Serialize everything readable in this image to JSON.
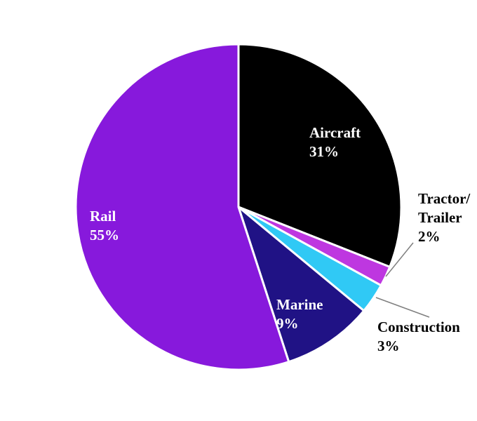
{
  "chart_data": {
    "type": "pie",
    "title": "",
    "direction": "clockwise",
    "start_angle_deg": 0,
    "background_color": "#ffffff",
    "slice_border_color": "#ffffff",
    "leader_line_color": "#7f7f7f",
    "slices": [
      {
        "id": "aircraft",
        "label": "Aircraft",
        "label_lines": [
          "Aircraft"
        ],
        "value": 31,
        "value_label": "31%",
        "color": "#000000",
        "label_color": "#ffffff",
        "label_placement": "inside"
      },
      {
        "id": "tractor-trailer",
        "label": "Tractor/Trailer",
        "label_lines": [
          "Tractor/",
          "Trailer"
        ],
        "value": 2,
        "value_label": "2%",
        "color": "#be37e0",
        "label_color": "#000000",
        "label_placement": "outside"
      },
      {
        "id": "construction",
        "label": "Construction",
        "label_lines": [
          "Construction"
        ],
        "value": 3,
        "value_label": "3%",
        "color": "#30c9f5",
        "label_color": "#000000",
        "label_placement": "outside"
      },
      {
        "id": "marine",
        "label": "Marine",
        "label_lines": [
          "Marine"
        ],
        "value": 9,
        "value_label": "9%",
        "color": "#201285",
        "label_color": "#ffffff",
        "label_placement": "inside"
      },
      {
        "id": "rail",
        "label": "Rail",
        "label_lines": [
          "Rail"
        ],
        "value": 55,
        "value_label": "55%",
        "color": "#8719dc",
        "label_color": "#ffffff",
        "label_placement": "inside"
      }
    ]
  }
}
